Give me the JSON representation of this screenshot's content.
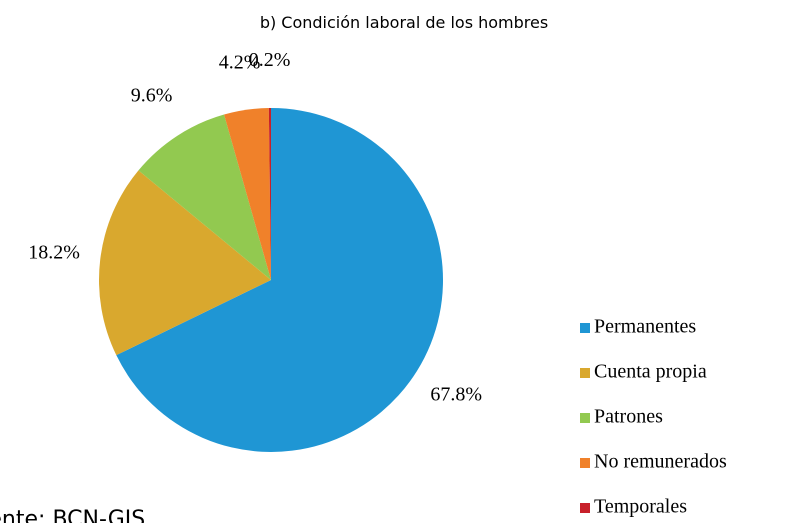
{
  "chart_data": {
    "type": "pie",
    "title": "b) Condición laboral de los hombres",
    "categories": [
      "Permanentes",
      "Cuenta propia",
      "Patrones",
      "No remunerados",
      "Temporales"
    ],
    "values": [
      67.8,
      18.2,
      9.6,
      4.2,
      0.2
    ],
    "value_labels": [
      "67.8%",
      "18.2%",
      "9.6%",
      "4.2%",
      "0.2%"
    ],
    "colors": [
      "#1f96d4",
      "#d9a82e",
      "#92c950",
      "#f0812a",
      "#c8202a"
    ],
    "legend": "right",
    "source": "Fuente: BCN-GIS"
  }
}
